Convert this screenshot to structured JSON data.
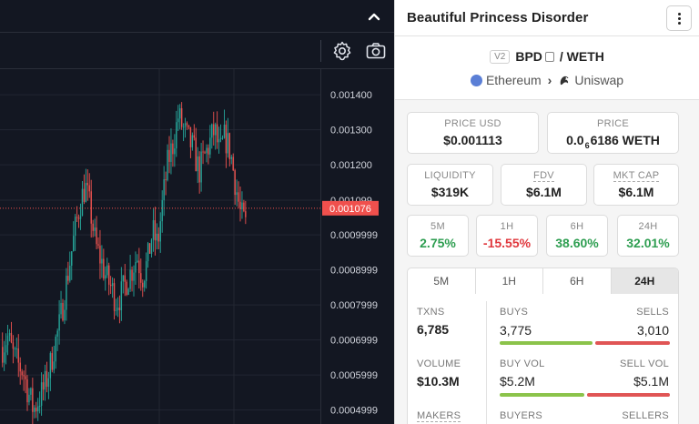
{
  "chart": {
    "price_axis_labels": [
      "0.001400",
      "0.001300",
      "0.001200",
      "0.001099",
      "0.0009999",
      "0.0008999",
      "0.0007999",
      "0.0006999",
      "0.0005999",
      "0.0004999"
    ],
    "current_price_label": "0.001076",
    "colors": {
      "up": "#26a69a",
      "down": "#ef5350",
      "price_tag": "#f0504d",
      "background": "#131722",
      "grid": "#232733"
    },
    "icons": {
      "collapse": "chevron-up-icon",
      "settings": "gear-icon",
      "screenshot": "camera-icon"
    }
  },
  "chart_data": {
    "type": "candlestick",
    "y_ticks": [
      0.0014,
      0.0013,
      0.0012,
      0.001099,
      0.0009999,
      0.0008999,
      0.0007999,
      0.0006999,
      0.0005999,
      0.0004999
    ],
    "ylim": [
      0.00046,
      0.001473
    ],
    "current_price": 0.001076,
    "close_path": [
      0.00068,
      0.00071,
      0.00066,
      0.00063,
      0.00061,
      0.00055,
      0.0005,
      0.00053,
      0.00056,
      0.00061,
      0.00068,
      0.00074,
      0.00083,
      0.00092,
      0.00101,
      0.00109,
      0.00114,
      0.00107,
      0.00097,
      0.00093,
      0.00088,
      0.00085,
      0.00081,
      0.00083,
      0.00087,
      0.0009,
      0.00094,
      0.00088,
      0.00092,
      0.00101,
      0.00097,
      0.0011,
      0.00121,
      0.00126,
      0.00134,
      0.0013,
      0.00127,
      0.00124,
      0.00118,
      0.00122,
      0.00126,
      0.0013,
      0.00123,
      0.00128,
      0.00124,
      0.00115,
      0.00106,
      0.00103
    ]
  },
  "token": {
    "name": "Beautiful Princess Disorder",
    "version": "V2",
    "base_symbol": "BPD",
    "quote_symbol": "/ WETH",
    "chain": "Ethereum",
    "dex": "Uniswap",
    "icons": {
      "menu": "more-vertical-icon",
      "copy": "copy-icon",
      "chain": "ethereum-icon",
      "breadcrumb": "chevron-right-icon",
      "dex": "uniswap-icon"
    }
  },
  "price": {
    "usd_label": "PRICE USD",
    "usd_value": "$0.001113",
    "native_label": "PRICE",
    "native_prefix": "0.0",
    "native_subscript": "6",
    "native_digits": "6186 WETH"
  },
  "metrics": [
    {
      "label": "LIQUIDITY",
      "value": "$319K"
    },
    {
      "label": "FDV",
      "value": "$6.1M"
    },
    {
      "label": "MKT CAP",
      "value": "$6.1M"
    }
  ],
  "changes": [
    {
      "label": "5M",
      "value": "2.75%"
    },
    {
      "label": "1H",
      "value": "-15.55%"
    },
    {
      "label": "6H",
      "value": "38.60%"
    },
    {
      "label": "24H",
      "value": "32.01%"
    }
  ],
  "timeframe_tabs": [
    "5M",
    "1H",
    "6H",
    "24H"
  ],
  "active_tab": "24H",
  "stats": {
    "txns_label": "TXNS",
    "txns_value": "6,785",
    "buys_label": "BUYS",
    "buys_value": "3,775",
    "sells_label": "SELLS",
    "sells_value": "3,010",
    "buy_share": 0.556,
    "volume_label": "VOLUME",
    "volume_value": "$10.3M",
    "buy_vol_label": "BUY VOL",
    "buy_vol_value": "$5.2M",
    "sell_vol_label": "SELL VOL",
    "sell_vol_value": "$5.1M",
    "buy_vol_share": 0.505,
    "makers_label": "MAKERS",
    "buyers_label": "BUYERS",
    "sellers_label": "SELLERS",
    "colors": {
      "buy": "#8bc34a",
      "sell": "#e05555"
    }
  }
}
